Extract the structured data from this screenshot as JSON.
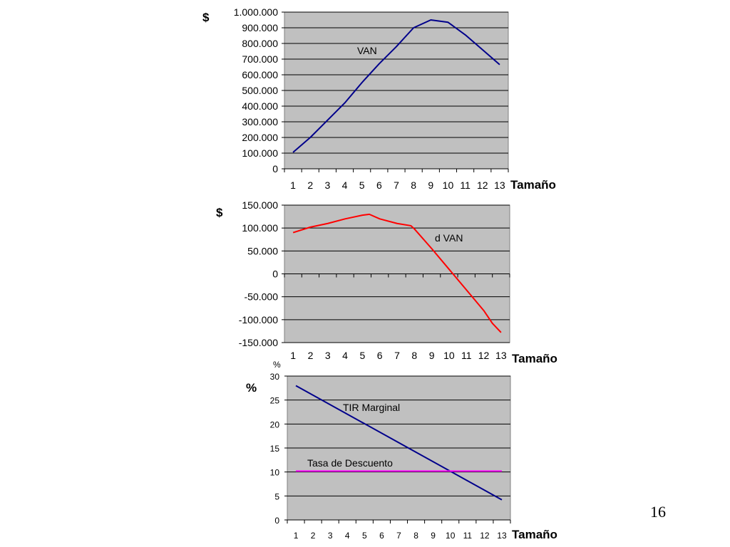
{
  "slide_number": "16",
  "chart_data": [
    {
      "type": "line",
      "ylabel": "$",
      "xlabel": "Tamaño",
      "ylim": [
        0,
        1000000
      ],
      "y_ticks": [
        "0",
        "100.000",
        "200.000",
        "300.000",
        "400.000",
        "500.000",
        "600.000",
        "700.000",
        "800.000",
        "900.000",
        "1.000.000"
      ],
      "categories": [
        "1",
        "2",
        "3",
        "4",
        "5",
        "6",
        "7",
        "8",
        "9",
        "10",
        "11",
        "12",
        "13"
      ],
      "grid": true,
      "series": [
        {
          "name": "VAN",
          "color": "#00008b",
          "x": [
            1,
            2,
            3,
            4,
            5,
            6,
            7,
            8,
            9,
            10,
            11,
            12,
            13
          ],
          "values": [
            105000,
            200000,
            310000,
            420000,
            550000,
            670000,
            780000,
            900000,
            950000,
            935000,
            855000,
            760000,
            665000
          ]
        }
      ]
    },
    {
      "type": "line",
      "ylabel": "$",
      "xlabel": "Tamaño",
      "ylim": [
        -150000,
        150000
      ],
      "y_ticks": [
        "-150.000",
        "-100.000",
        "-50.000",
        "0",
        "50.000",
        "100.000",
        "150.000"
      ],
      "categories": [
        "1",
        "2",
        "3",
        "4",
        "5",
        "6",
        "7",
        "8",
        "9",
        "10",
        "11",
        "12",
        "13"
      ],
      "grid": true,
      "series": [
        {
          "name": "d VAN",
          "color": "#ff0000",
          "x": [
            1,
            2,
            3,
            4,
            5,
            5.4,
            6,
            7,
            7.8,
            8,
            9,
            10,
            11,
            12,
            12.5,
            13
          ],
          "values": [
            90000,
            102000,
            110000,
            120000,
            128000,
            130000,
            120000,
            110000,
            105000,
            98000,
            55000,
            10000,
            -35000,
            -80000,
            -108000,
            -128000
          ]
        }
      ]
    },
    {
      "type": "line",
      "ylabel": "%",
      "unit_top": "%",
      "xlabel": "Tamaño",
      "ylim": [
        0,
        30
      ],
      "y_ticks": [
        "0",
        "5",
        "10",
        "15",
        "20",
        "25",
        "30"
      ],
      "categories": [
        "1",
        "2",
        "3",
        "4",
        "5",
        "6",
        "7",
        "8",
        "9",
        "10",
        "11",
        "12",
        "13"
      ],
      "grid": true,
      "series": [
        {
          "name": "TIR Marginal",
          "color": "#00008b",
          "x": [
            1,
            13
          ],
          "values": [
            28,
            4.2
          ]
        },
        {
          "name": "Tasa de Descuento",
          "color": "#ff00ff",
          "x": [
            1,
            13
          ],
          "values": [
            10.2,
            10.2
          ]
        }
      ]
    }
  ]
}
